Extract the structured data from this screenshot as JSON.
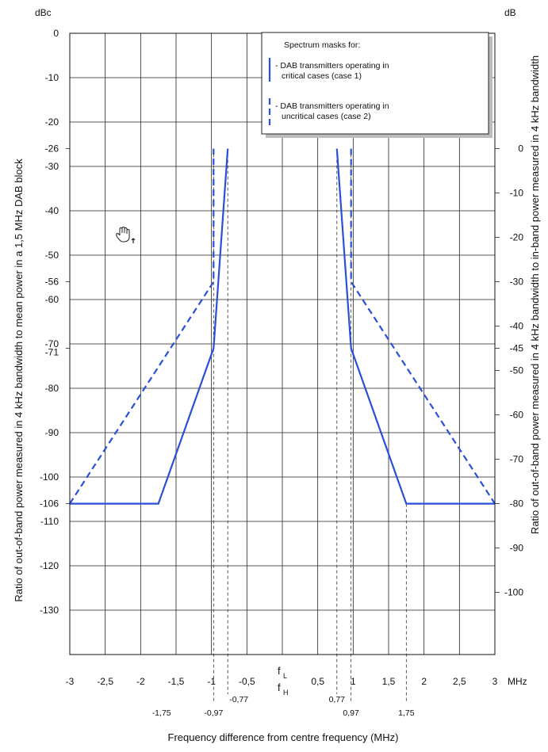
{
  "chart_data": {
    "type": "line",
    "xlabel": "Frequency difference from centre frequency (MHz)",
    "ylabel": "Ratio of out-of-band power measured in 4 kHz bandwidth to mean power in a 1,5 MHz DAB  block",
    "ylabel_right": "Ratio of out-of-band power measured in 4 kHz bandwidth to in-band power measured in 4 kHz bandwidth",
    "y_unit_left": "dBc",
    "y_unit_right": "dB",
    "x_unit": "MHz",
    "xlim": [
      -3,
      3
    ],
    "ylim": [
      -140,
      0
    ],
    "grid": true,
    "x_ticks": [
      {
        "value": -3,
        "label": "-3"
      },
      {
        "value": -2.5,
        "label": "-2,5"
      },
      {
        "value": -2,
        "label": "-2"
      },
      {
        "value": -1.5,
        "label": "-1,5"
      },
      {
        "value": -1,
        "label": "-1"
      },
      {
        "value": -0.5,
        "label": "-0,5"
      },
      {
        "value": 0.5,
        "label": "0,5"
      },
      {
        "value": 1,
        "label": "1"
      },
      {
        "value": 1.5,
        "label": "1,5"
      },
      {
        "value": 2,
        "label": "2"
      },
      {
        "value": 2.5,
        "label": "2,5"
      },
      {
        "value": 3,
        "label": "3"
      }
    ],
    "center_labels": [
      "f",
      "L",
      "f",
      "H"
    ],
    "x_markers": [
      {
        "value": -0.97,
        "label": "-0,97",
        "row": 2
      },
      {
        "value": -0.77,
        "label": "-0,77",
        "row": 1
      },
      {
        "value": 0.77,
        "label": "0,77",
        "row": 1
      },
      {
        "value": 0.97,
        "label": "0,97",
        "row": 2
      },
      {
        "value": 1.75,
        "label": "1,75",
        "row": 2
      }
    ],
    "extra_x_labels": [
      {
        "value": -1.75,
        "label": "-1,75",
        "row": 2
      }
    ],
    "y_ticks_left": [
      {
        "value": 0,
        "label": "0"
      },
      {
        "value": -10,
        "label": "-10"
      },
      {
        "value": -20,
        "label": "-20"
      },
      {
        "value": -30,
        "label": "-30"
      },
      {
        "value": -40,
        "label": "-40"
      },
      {
        "value": -50,
        "label": "-50"
      },
      {
        "value": -60,
        "label": "-60"
      },
      {
        "value": -70,
        "label": "-70"
      },
      {
        "value": -80,
        "label": "-80"
      },
      {
        "value": -90,
        "label": "-90"
      },
      {
        "value": -100,
        "label": "-100"
      },
      {
        "value": -110,
        "label": "-110"
      },
      {
        "value": -120,
        "label": "-120"
      },
      {
        "value": -130,
        "label": "-130"
      }
    ],
    "y_special_left": [
      {
        "value": -26,
        "label": "-26"
      },
      {
        "value": -56,
        "label": "-56"
      },
      {
        "value": -71,
        "label": "-71"
      },
      {
        "value": -106,
        "label": "-106"
      }
    ],
    "y_ticks_right": [
      {
        "value": -26,
        "label": "0"
      },
      {
        "value": -36,
        "label": "-10"
      },
      {
        "value": -46,
        "label": "-20"
      },
      {
        "value": -56,
        "label": "-30"
      },
      {
        "value": -66,
        "label": "-40"
      },
      {
        "value": -71,
        "label": "-45"
      },
      {
        "value": -76,
        "label": "-50"
      },
      {
        "value": -86,
        "label": "-60"
      },
      {
        "value": -96,
        "label": "-70"
      },
      {
        "value": -106,
        "label": "-80"
      },
      {
        "value": -116,
        "label": "-90"
      },
      {
        "value": -126,
        "label": "-100"
      }
    ],
    "series": [
      {
        "name": "- DAB transmitters operating in critical cases (case 1)",
        "style": "solid",
        "color": "#2a4fd9",
        "segments": [
          [
            [
              -3,
              -106
            ],
            [
              -1.75,
              -106
            ],
            [
              -0.97,
              -71
            ],
            [
              -0.77,
              -26
            ]
          ],
          [
            [
              0.77,
              -26
            ],
            [
              0.97,
              -71
            ],
            [
              1.75,
              -106
            ],
            [
              3,
              -106
            ]
          ]
        ]
      },
      {
        "name": "- DAB transmitters operating in uncritical cases (case 2)",
        "style": "dashed",
        "color": "#2a4fd9",
        "segments": [
          [
            [
              -3,
              -106
            ],
            [
              -0.97,
              -56
            ],
            [
              -0.97,
              -26
            ]
          ],
          [
            [
              0.97,
              -26
            ],
            [
              0.97,
              -56
            ],
            [
              3,
              -106
            ]
          ]
        ]
      }
    ],
    "legend": {
      "title": "Spectrum masks for:",
      "placement": "top-right",
      "entries": [
        {
          "line1": "- DAB transmitters operating in",
          "line2": "critical cases (case 1)",
          "style": "solid"
        },
        {
          "line1": "- DAB transmitters operating in",
          "line2": "uncritical cases (case 2)",
          "style": "dashed"
        }
      ]
    },
    "cursor_icon": "hand-cursor-icon"
  }
}
